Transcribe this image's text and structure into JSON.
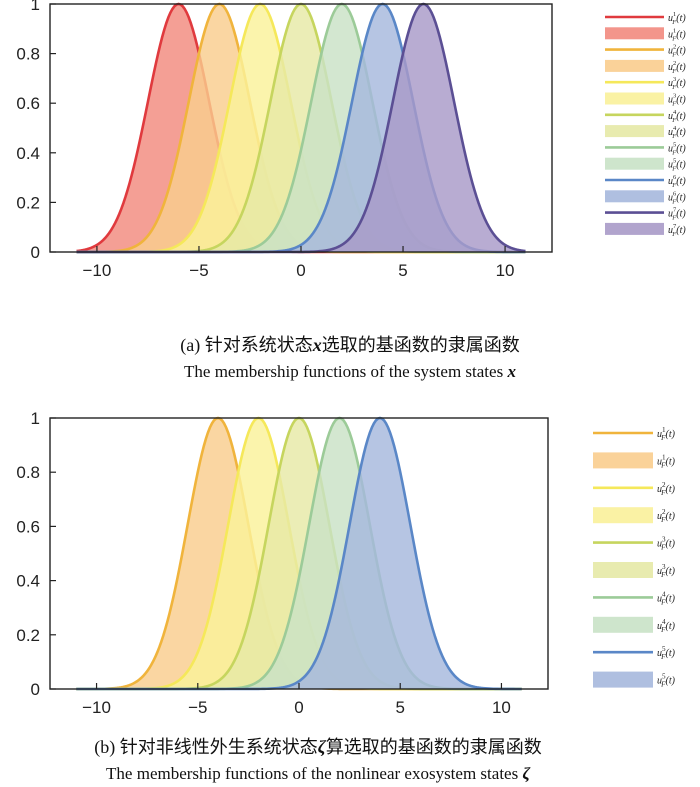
{
  "chart_data": [
    {
      "type": "area",
      "id": "a",
      "title": "",
      "xlabel": "",
      "ylabel": "",
      "xlim": [
        -12.3,
        12.3
      ],
      "ylim": [
        0,
        1
      ],
      "xticks": [
        -10,
        -5,
        0,
        5,
        10
      ],
      "yticks": [
        0,
        0.2,
        0.4,
        0.6,
        0.8,
        1
      ],
      "xtick_labels": [
        "−10",
        "−5",
        "0",
        "5",
        "10"
      ],
      "ytick_labels": [
        "0",
        "0.2",
        "0.4",
        "0.6",
        "0.8",
        "1"
      ],
      "x_range": [
        -11,
        11
      ],
      "curve": "gaussian",
      "sigma": 1.5,
      "legend_position": "right",
      "series": [
        {
          "name": "u_F^1(t)",
          "center": -6,
          "line_color": "#E03A3E",
          "fill_color": "#F28A7E"
        },
        {
          "name": "u_F^2(t)",
          "center": -4,
          "line_color": "#F0B43C",
          "fill_color": "#F9CD8E"
        },
        {
          "name": "u_F^3(t)",
          "center": -2,
          "line_color": "#F5E85A",
          "fill_color": "#FAF19A"
        },
        {
          "name": "u_F^4(t)",
          "center": 0,
          "line_color": "#C6D55E",
          "fill_color": "#E6E9A6"
        },
        {
          "name": "u_F^5(t)",
          "center": 2,
          "line_color": "#9CCB98",
          "fill_color": "#C9E2C6"
        },
        {
          "name": "u_F^6(t)",
          "center": 4,
          "line_color": "#5A87C7",
          "fill_color": "#A6B8DD"
        },
        {
          "name": "u_F^7(t)",
          "center": 6,
          "line_color": "#5B4F94",
          "fill_color": "#A89AC8"
        }
      ],
      "legend_entries": [
        {
          "sup": "1",
          "kind": "line",
          "series": 0
        },
        {
          "sup": "1",
          "kind": "patch",
          "series": 0
        },
        {
          "sup": "2",
          "kind": "line",
          "series": 1
        },
        {
          "sup": "2",
          "kind": "patch",
          "series": 1
        },
        {
          "sup": "3",
          "kind": "line",
          "series": 2
        },
        {
          "sup": "3",
          "kind": "patch",
          "series": 2
        },
        {
          "sup": "4",
          "kind": "line",
          "series": 3
        },
        {
          "sup": "4",
          "kind": "patch",
          "series": 3
        },
        {
          "sup": "5",
          "kind": "line",
          "series": 4
        },
        {
          "sup": "5",
          "kind": "patch",
          "series": 4
        },
        {
          "sup": "6",
          "kind": "line",
          "series": 5
        },
        {
          "sup": "6",
          "kind": "patch",
          "series": 5
        },
        {
          "sup": "7",
          "kind": "line",
          "series": 6
        },
        {
          "sup": "7",
          "kind": "patch",
          "series": 6
        }
      ]
    },
    {
      "type": "area",
      "id": "b",
      "title": "",
      "xlabel": "",
      "ylabel": "",
      "xlim": [
        -12.3,
        12.3
      ],
      "ylim": [
        0,
        1
      ],
      "xticks": [
        -10,
        -5,
        0,
        5,
        10
      ],
      "yticks": [
        0,
        0.2,
        0.4,
        0.6,
        0.8,
        1
      ],
      "xtick_labels": [
        "−10",
        "−5",
        "0",
        "5",
        "10"
      ],
      "ytick_labels": [
        "0",
        "0.2",
        "0.4",
        "0.6",
        "0.8",
        "1"
      ],
      "x_range": [
        -11,
        11
      ],
      "curve": "gaussian",
      "sigma": 1.5,
      "legend_position": "right",
      "series": [
        {
          "name": "u_F^1(t)",
          "center": -4,
          "line_color": "#F0B43C",
          "fill_color": "#F9CD8E"
        },
        {
          "name": "u_F^2(t)",
          "center": -2,
          "line_color": "#F5E85A",
          "fill_color": "#FAF19A"
        },
        {
          "name": "u_F^3(t)",
          "center": 0,
          "line_color": "#C6D55E",
          "fill_color": "#E6E9A6"
        },
        {
          "name": "u_F^4(t)",
          "center": 2,
          "line_color": "#9CCB98",
          "fill_color": "#C9E2C6"
        },
        {
          "name": "u_F^5(t)",
          "center": 4,
          "line_color": "#5A87C7",
          "fill_color": "#A6B8DD"
        }
      ],
      "legend_entries": [
        {
          "sup": "1",
          "kind": "line",
          "series": 0
        },
        {
          "sup": "1",
          "kind": "patch",
          "series": 0
        },
        {
          "sup": "2",
          "kind": "line",
          "series": 1
        },
        {
          "sup": "2",
          "kind": "patch",
          "series": 1
        },
        {
          "sup": "3",
          "kind": "line",
          "series": 2
        },
        {
          "sup": "3",
          "kind": "patch",
          "series": 2
        },
        {
          "sup": "4",
          "kind": "line",
          "series": 3
        },
        {
          "sup": "4",
          "kind": "patch",
          "series": 3
        },
        {
          "sup": "5",
          "kind": "line",
          "series": 4
        },
        {
          "sup": "5",
          "kind": "patch",
          "series": 4
        }
      ]
    }
  ],
  "legend_label": {
    "base": "u",
    "sub": "F",
    "tail": "(t)"
  },
  "captions": {
    "a": {
      "zh_prefix": "(a) 针对系统状态",
      "zh_symbol": "x",
      "zh_suffix": "选取的基函数的隶属函数",
      "en_text": "The membership functions of the system states ",
      "en_symbol": "x"
    },
    "b": {
      "zh_prefix": "(b) 针对非线性外生系统状态",
      "zh_symbol": "ζ",
      "zh_suffix": "算选取的基函数的隶属函数",
      "en_text": "The membership functions of the nonlinear exosystem states ",
      "en_symbol": "ζ"
    }
  }
}
